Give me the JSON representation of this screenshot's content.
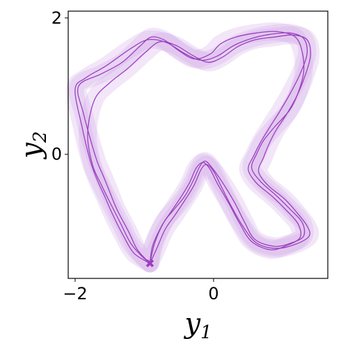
{
  "chart_data": {
    "type": "line",
    "xlabel": "y",
    "xlabel_sub": "1",
    "ylabel": "y",
    "ylabel_sub": "2",
    "xlim": [
      -2.1,
      1.65
    ],
    "ylim": [
      -1.82,
      2.1
    ],
    "xticks": [
      {
        "value": -2,
        "label": "−2"
      },
      {
        "value": 0,
        "label": "0"
      }
    ],
    "yticks": [
      {
        "value": 0,
        "label": "0"
      },
      {
        "value": 2,
        "label": "2"
      }
    ],
    "grid": false,
    "line_color": "#9b3fbf",
    "band_color": "#cfa6e6",
    "marker_color": "#9b3fbf",
    "start_marker": {
      "x": -0.92,
      "y": -1.6,
      "symbol": "X"
    },
    "series": [
      {
        "x": [
          -0.92,
          -1.1,
          -1.22,
          -1.4,
          -1.52,
          -1.6,
          -1.7,
          -1.88,
          -1.95,
          -1.62,
          -1.32,
          -1.05,
          -0.9,
          -0.72,
          -0.5,
          -0.28,
          -0.05,
          0.1,
          0.32,
          0.62,
          0.92,
          1.18,
          1.28,
          1.3,
          1.22,
          1.1,
          0.88,
          0.72,
          0.62,
          0.55,
          0.68,
          0.9,
          1.1,
          1.28,
          1.3,
          1.12,
          0.88,
          0.6,
          0.45,
          0.3,
          0.12,
          -0.02,
          -0.12,
          -0.2,
          -0.3,
          -0.42,
          -0.58,
          -0.72,
          -0.85,
          -0.92
        ],
        "y": [
          -1.6,
          -1.4,
          -1.15,
          -0.8,
          -0.5,
          -0.3,
          -0.05,
          0.6,
          1.0,
          1.18,
          1.35,
          1.6,
          1.72,
          1.68,
          1.52,
          1.4,
          1.47,
          1.62,
          1.72,
          1.78,
          1.8,
          1.72,
          1.5,
          1.2,
          0.9,
          0.65,
          0.4,
          0.2,
          0.0,
          -0.2,
          -0.4,
          -0.6,
          -0.8,
          -1.0,
          -1.2,
          -1.3,
          -1.35,
          -1.25,
          -1.0,
          -0.7,
          -0.4,
          -0.2,
          -0.1,
          -0.18,
          -0.4,
          -0.62,
          -0.82,
          -1.0,
          -1.3,
          -1.6
        ]
      },
      {
        "x": [
          -0.92,
          -1.05,
          -1.2,
          -1.35,
          -1.5,
          -1.62,
          -1.75,
          -1.82,
          -1.72,
          -1.5,
          -1.25,
          -0.98,
          -0.78,
          -0.55,
          -0.3,
          -0.08,
          0.12,
          0.35,
          0.6,
          0.88,
          1.15,
          1.35,
          1.4,
          1.32,
          1.2,
          1.05,
          0.9,
          0.8,
          0.72,
          0.65,
          0.78,
          1.02,
          1.2,
          1.35,
          1.38,
          1.18,
          0.9,
          0.62,
          0.42,
          0.25,
          0.1,
          0.0,
          -0.1,
          -0.18,
          -0.28,
          -0.4,
          -0.55,
          -0.7,
          -0.82,
          -0.92
        ],
        "y": [
          -1.6,
          -1.48,
          -1.3,
          -1.0,
          -0.7,
          -0.45,
          -0.15,
          0.3,
          0.8,
          1.05,
          1.25,
          1.5,
          1.65,
          1.6,
          1.45,
          1.35,
          1.42,
          1.58,
          1.68,
          1.72,
          1.75,
          1.68,
          1.45,
          1.15,
          0.85,
          0.58,
          0.35,
          0.15,
          -0.05,
          -0.25,
          -0.45,
          -0.65,
          -0.85,
          -1.05,
          -1.2,
          -1.32,
          -1.38,
          -1.3,
          -1.05,
          -0.75,
          -0.45,
          -0.25,
          -0.15,
          -0.22,
          -0.45,
          -0.65,
          -0.88,
          -1.1,
          -1.38,
          -1.6
        ]
      },
      {
        "x": [
          -0.92,
          -1.15,
          -1.3,
          -1.45,
          -1.58,
          -1.68,
          -1.78,
          -1.9,
          -2.0,
          -1.85,
          -1.55,
          -1.2,
          -0.95,
          -0.68,
          -0.42,
          -0.18,
          0.05,
          0.3,
          0.55,
          0.82,
          1.1,
          1.3,
          1.35,
          1.25,
          1.1,
          0.95,
          0.8,
          0.68,
          0.58,
          0.5,
          0.62,
          0.85,
          1.05,
          1.22,
          1.25,
          1.05,
          0.82,
          0.55,
          0.38,
          0.22,
          0.05,
          -0.05,
          -0.15,
          -0.25,
          -0.35,
          -0.48,
          -0.62,
          -0.75,
          -0.88,
          -0.92
        ],
        "y": [
          -1.6,
          -1.45,
          -1.2,
          -0.9,
          -0.6,
          -0.38,
          -0.1,
          0.4,
          0.95,
          1.12,
          1.3,
          1.55,
          1.68,
          1.64,
          1.48,
          1.38,
          1.44,
          1.6,
          1.7,
          1.76,
          1.78,
          1.7,
          1.48,
          1.18,
          0.88,
          0.62,
          0.38,
          0.18,
          -0.02,
          -0.22,
          -0.42,
          -0.62,
          -0.82,
          -1.02,
          -1.22,
          -1.34,
          -1.4,
          -1.28,
          -1.02,
          -0.72,
          -0.42,
          -0.22,
          -0.12,
          -0.2,
          -0.42,
          -0.64,
          -0.85,
          -1.05,
          -1.34,
          -1.6
        ]
      }
    ]
  }
}
